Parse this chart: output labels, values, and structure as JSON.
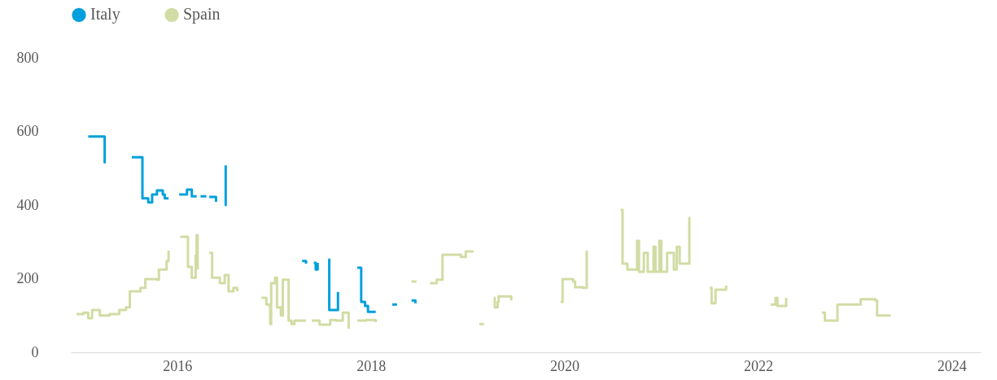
{
  "chart_data": {
    "type": "step",
    "series": [
      {
        "name": "Italy",
        "color": "#00a0dc",
        "x": [
          2015.08,
          2015.25,
          2015.25,
          2015.26,
          2015.53,
          2015.63,
          2015.64,
          2015.7,
          2015.74,
          2015.79,
          2015.85,
          2015.87,
          2015.91,
          2015.92,
          2016.02,
          2016.1,
          2016.15,
          2016.2,
          2016.21,
          2016.24,
          2016.3,
          2016.31,
          2016.33,
          2016.4,
          2016.41,
          2016.49,
          2016.5,
          2016.51,
          2017.29,
          2017.33,
          2017.34,
          2017.41,
          2017.43,
          2017.45,
          2017.46,
          2017.56,
          2017.57,
          2017.65,
          2017.66,
          2017.67,
          2017.86,
          2017.9,
          2017.94,
          2017.97,
          2018.05,
          2018.06,
          2018.22,
          2018.27,
          2018.28,
          2018.42,
          2018.46
        ],
        "values": [
          586,
          586,
          513,
          null,
          530,
          530,
          418,
          407,
          429,
          440,
          429,
          418,
          418,
          null,
          429,
          442,
          424,
          424,
          null,
          424,
          424,
          null,
          422,
          409,
          null,
          400,
          508,
          null,
          248,
          241,
          null,
          243,
          225,
          243,
          null,
          252,
          115,
          115,
          164,
          null,
          230,
          137,
          126,
          110,
          110,
          null,
          130,
          130,
          null,
          141,
          133
        ]
      },
      {
        "name": "Spain",
        "color": "#d1dca4",
        "x": [
          2014.96,
          2015.03,
          2015.08,
          2015.12,
          2015.2,
          2015.3,
          2015.4,
          2015.47,
          2015.51,
          2015.62,
          2015.67,
          2015.79,
          2015.81,
          2015.89,
          2015.91,
          2015.92,
          2016.03,
          2016.09,
          2016.11,
          2016.15,
          2016.19,
          2016.2,
          2016.21,
          2016.22,
          2016.33,
          2016.36,
          2016.44,
          2016.49,
          2016.53,
          2016.58,
          2016.62,
          2016.63,
          2016.87,
          2016.92,
          2016.96,
          2016.97,
          2017.01,
          2017.03,
          2017.07,
          2017.09,
          2017.15,
          2017.18,
          2017.21,
          2017.33,
          2017.34,
          2017.39,
          2017.47,
          2017.5,
          2017.58,
          2017.64,
          2017.71,
          2017.77,
          2017.78,
          2017.86,
          2017.95,
          2018.05,
          2018.06,
          2018.42,
          2018.47,
          2018.48,
          2018.61,
          2018.68,
          2018.74,
          2018.89,
          2018.93,
          2018.98,
          2019.05,
          2019.06,
          2019.12,
          2019.17,
          2019.18,
          2019.27,
          2019.28,
          2019.31,
          2019.32,
          2019.45,
          2019.46,
          2019.96,
          2019.98,
          2020.09,
          2020.11,
          2020.19,
          2020.23,
          2020.24,
          2020.58,
          2020.6,
          2020.65,
          2020.72,
          2020.75,
          2020.77,
          2020.82,
          2020.86,
          2020.92,
          2020.94,
          2020.98,
          2021.0,
          2021.06,
          2021.13,
          2021.16,
          2021.19,
          2021.28,
          2021.29,
          2021.3,
          2021.31,
          2021.5,
          2021.52,
          2021.56,
          2021.67,
          2021.68,
          2022.13,
          2022.18,
          2022.2,
          2022.29,
          2022.3,
          2022.66,
          2022.69,
          2022.8,
          2022.82,
          2023.03,
          2023.06,
          2023.21,
          2023.23,
          2023.37
        ],
        "values": [
          104,
          108,
          93,
          115,
          100,
          104,
          115,
          122,
          166,
          175,
          199,
          197,
          225,
          248,
          276,
          null,
          314,
          314,
          232,
          203,
          263,
          318,
          225,
          null,
          270,
          203,
          188,
          210,
          166,
          175,
          166,
          null,
          148,
          130,
          77,
          188,
          203,
          122,
          100,
          197,
          86,
          77,
          86,
          86,
          null,
          86,
          75,
          75,
          88,
          86,
          108,
          64,
          null,
          86,
          88,
          82,
          null,
          192,
          192,
          null,
          188,
          197,
          265,
          265,
          259,
          274,
          276,
          null,
          77,
          77,
          null,
          148,
          122,
          137,
          152,
          141,
          null,
          137,
          199,
          192,
          177,
          175,
          276,
          null,
          387,
          241,
          225,
          225,
          303,
          219,
          270,
          219,
          287,
          219,
          303,
          219,
          270,
          225,
          287,
          241,
          241,
          365,
          365,
          null,
          175,
          133,
          170,
          181,
          null,
          130,
          148,
          126,
          148,
          null,
          108,
          86,
          86,
          130,
          130,
          144,
          141,
          100,
          100
        ]
      }
    ],
    "xlim": [
      2014.9,
      2024.3
    ],
    "xticks": [
      2016,
      2018,
      2020,
      2022,
      2024
    ],
    "ylim": [
      0,
      800
    ],
    "yticks": [
      0,
      200,
      400,
      600,
      800
    ],
    "grid": false,
    "legend": "top left"
  }
}
